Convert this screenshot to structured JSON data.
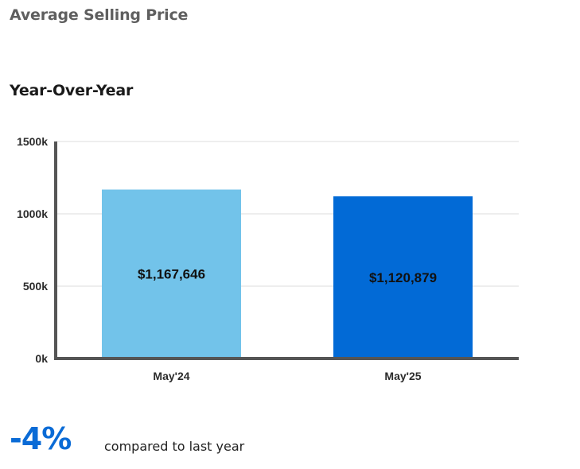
{
  "header": {
    "title": "Average Selling Price",
    "subtitle": "Year-Over-Year"
  },
  "chart_data": {
    "type": "bar",
    "categories": [
      "May'24",
      "May'25"
    ],
    "values": [
      1167646,
      1120879
    ],
    "value_labels": [
      "$1,167,646",
      "$1,120,879"
    ],
    "bar_colors": [
      "#72c3ea",
      "#026ad6"
    ],
    "ylim": [
      0,
      1500000
    ],
    "yticks": [
      0,
      500000,
      1000000,
      1500000
    ],
    "ytick_labels": [
      "0k",
      "500k",
      "1000k",
      "1500k"
    ],
    "grid": true,
    "xlabel": "",
    "ylabel": ""
  },
  "summary": {
    "change": "-4%",
    "caption": "compared to last year"
  }
}
